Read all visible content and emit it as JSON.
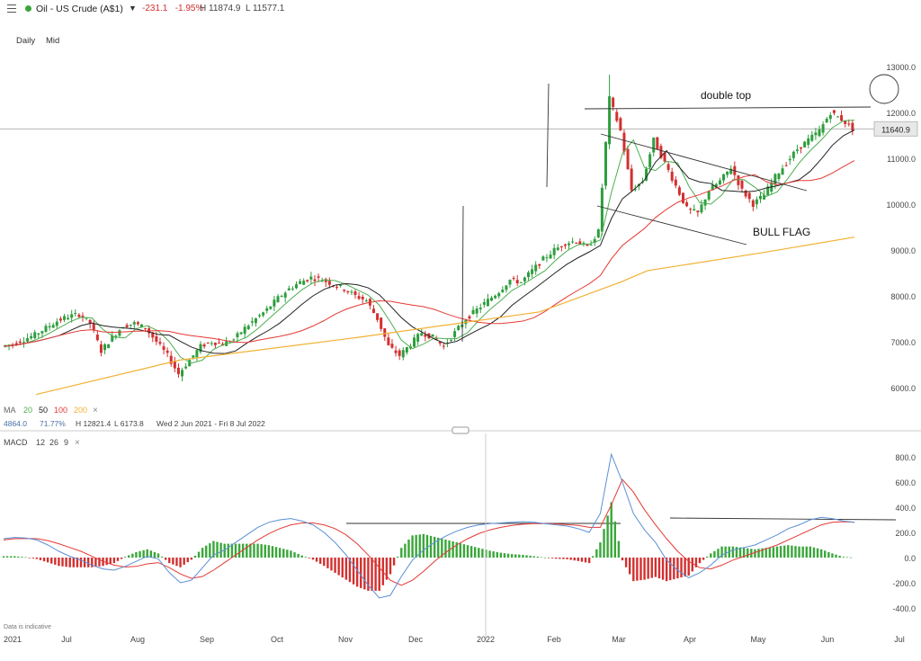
{
  "header": {
    "instrument": "Oil - US Crude (A$1)",
    "change": "-231.1",
    "change_pct": "-1.95%",
    "high": "H 11874.9",
    "low": "L 11577.1"
  },
  "timeframes": [
    "Daily",
    "Mid"
  ],
  "price_panel": {
    "ma_label": "MA",
    "ma_periods": [
      "20",
      "50",
      "100",
      "200"
    ],
    "ma_colors": {
      "20": "#4caf50",
      "50": "#222222",
      "100": "#e53935",
      "200": "#f2b133"
    },
    "remove_symbol": "×",
    "info_value": "4864.0",
    "info_pct": "71.77%",
    "info_high": "H 12821.4",
    "info_low": "L 6173.8",
    "info_range": "Wed 2 Jun 2021 - Fri 8 Jul 2022",
    "last_price": "11640.9",
    "annotations": [
      "double top",
      "BULL FLAG"
    ]
  },
  "macd_panel": {
    "label": "MACD",
    "params": [
      "12",
      "26",
      "9"
    ],
    "remove_symbol": "×",
    "y_ticks": [
      "800.0",
      "600.0",
      "400.0",
      "200.0",
      "0.0",
      "-200.0",
      "-400.0"
    ]
  },
  "footer": {
    "disclaimer": "Data is indicative",
    "x_ticks": [
      "2021",
      "Jul",
      "Aug",
      "Sep",
      "Oct",
      "Nov",
      "Dec",
      "2022",
      "Feb",
      "Mar",
      "Apr",
      "May",
      "Jun",
      "Jul"
    ]
  },
  "chart_data": {
    "type": "candlestick",
    "title": "Oil - US Crude (A$1)",
    "y_ticks": [
      13000,
      12000,
      11000,
      10000,
      9000,
      8000,
      7000,
      6000
    ],
    "ylim": [
      5700,
      13300
    ],
    "last_price": 11640.9,
    "close_series": [
      6900,
      6950,
      7050,
      7150,
      7300,
      7450,
      7550,
      7600,
      7400,
      6800,
      7100,
      7350,
      7400,
      7300,
      7000,
      6700,
      6300,
      6600,
      6900,
      7000,
      6950,
      7050,
      7300,
      7500,
      7700,
      7950,
      8150,
      8300,
      8400,
      8350,
      8250,
      8150,
      8000,
      7900,
      7500,
      6900,
      6700,
      6950,
      7200,
      7100,
      6900,
      7200,
      7500,
      7700,
      7900,
      8100,
      8350,
      8300,
      8550,
      8800,
      9000,
      9150,
      9200,
      9050,
      9400,
      12300,
      11600,
      10300,
      10500,
      11400,
      10900,
      10400,
      9900,
      9800,
      10300,
      10500,
      10800,
      10300,
      10000,
      10200,
      10600,
      10900,
      11200,
      11400,
      11600,
      12000,
      11850,
      11650
    ],
    "macd": [
      150,
      160,
      155,
      140,
      100,
      50,
      10,
      -20,
      -60,
      -90,
      -100,
      -70,
      -30,
      10,
      -10,
      -120,
      -200,
      -180,
      -80,
      20,
      60,
      120,
      180,
      240,
      280,
      300,
      310,
      290,
      260,
      200,
      120,
      20,
      -100,
      -220,
      -320,
      -300,
      -150,
      -20,
      60,
      120,
      170,
      210,
      240,
      260,
      270,
      275,
      280,
      285,
      280,
      270,
      260,
      250,
      230,
      200,
      350,
      820,
      600,
      350,
      220,
      120,
      -20,
      -100,
      -160,
      -120,
      -60,
      20,
      60,
      80,
      100,
      140,
      180,
      230,
      260,
      300,
      320,
      310,
      290,
      280
    ],
    "signal": [
      140,
      150,
      152,
      150,
      135,
      110,
      80,
      50,
      10,
      -30,
      -60,
      -75,
      -70,
      -50,
      -40,
      -80,
      -130,
      -165,
      -150,
      -100,
      -40,
      20,
      80,
      140,
      190,
      230,
      260,
      275,
      275,
      260,
      230,
      180,
      110,
      20,
      -80,
      -180,
      -220,
      -180,
      -110,
      -30,
      40,
      100,
      150,
      190,
      220,
      240,
      255,
      265,
      270,
      270,
      268,
      262,
      255,
      240,
      240,
      420,
      620,
      520,
      380,
      260,
      150,
      50,
      -30,
      -80,
      -90,
      -60,
      -20,
      10,
      40,
      70,
      100,
      140,
      180,
      220,
      260,
      280,
      285,
      280
    ],
    "annotations": [
      "double top",
      "BULL FLAG"
    ]
  }
}
